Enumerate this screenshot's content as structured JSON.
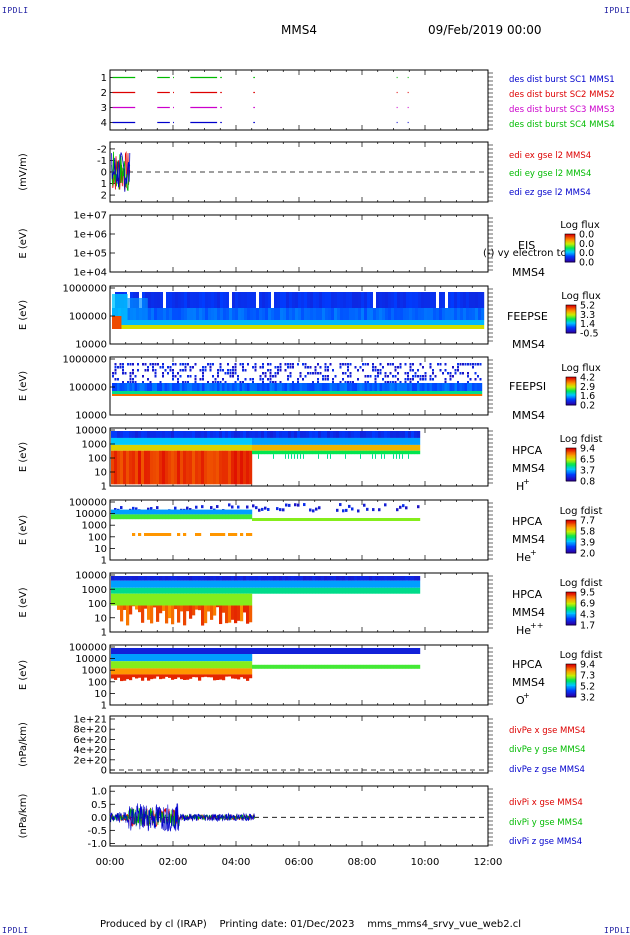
{
  "corners": {
    "tl": "IPDLI",
    "tr": "IPDLI",
    "bl": "IPDLI",
    "br": "IPDLI"
  },
  "header": {
    "title": "MMS4",
    "date": "09/Feb/2019 00:00"
  },
  "footer": {
    "produced_by": "Produced by cl (IRAP)",
    "printing_date": "Printing date: 01/Dec/2023",
    "filename": "mms_mms4_srvy_vue_web2.cl"
  },
  "colors": {
    "red": "#dd0000",
    "green": "#00bb00",
    "blue": "#0000cc",
    "magenta": "#cc00cc"
  },
  "chart_data": [
    {
      "type": "line",
      "panel": "burst",
      "ylim": [
        0.5,
        4.5
      ],
      "yticks": [
        "1",
        "2",
        "3",
        "4"
      ],
      "series": [
        {
          "name": "des dist burst SC1 MMS1",
          "color": "#0000cc",
          "level": 1
        },
        {
          "name": "des dist burst SC2 MMS2",
          "color": "#dd0000",
          "level": 3
        },
        {
          "name": "des dist burst SC3 MMS3",
          "color": "#cc00cc",
          "level": 2
        },
        {
          "name": "des dist burst SC4 MMS4",
          "color": "#00bb00",
          "level": 4
        }
      ],
      "segments_hours": [
        [
          0.08,
          0.8
        ],
        [
          1.5,
          1.9
        ],
        [
          2.0,
          2.03
        ],
        [
          2.55,
          3.4
        ],
        [
          3.5,
          3.55
        ],
        [
          4.55,
          4.6
        ],
        [
          9.1,
          9.13
        ],
        [
          9.45,
          9.48
        ]
      ]
    },
    {
      "type": "line",
      "panel": "edi",
      "ylabel": "(mV/m)",
      "ylim": [
        -2.6,
        2.6
      ],
      "yticks": [
        "-2",
        "-1",
        "0",
        "1",
        "2"
      ],
      "series": [
        {
          "name": "edi ex gse l2 MMS4",
          "color": "#dd0000"
        },
        {
          "name": "edi ey gse l2 MMS4",
          "color": "#00bb00"
        },
        {
          "name": "edi ez gse l2 MMS4",
          "color": "#0000cc"
        }
      ],
      "x_active_hours": [
        0.05,
        0.65
      ]
    },
    {
      "type": "heatmap",
      "panel": "eis",
      "ylabel": "E (eV)",
      "yticks": [
        "1e+04",
        "1e+05",
        "1e+06",
        "1e+07"
      ],
      "instrument": "EIS",
      "sub_label": "MMS4",
      "overlay_text": "(-) vy electron tc",
      "cbar_title": "Log flux",
      "cbar_ticks": [
        "0.0",
        "0.0",
        "0.0",
        "0.0"
      ],
      "has_data": false
    },
    {
      "type": "heatmap",
      "panel": "feepse",
      "ylabel": "E (eV)",
      "yticks": [
        "10000",
        "100000",
        "1000000"
      ],
      "instrument": "FEEPSE",
      "sub_label": "MMS4",
      "cbar_title": "Log flux",
      "cbar_ticks": [
        "5.2",
        "3.3",
        "1.4",
        "-0.5"
      ],
      "x_range_hours": [
        0,
        11.8
      ]
    },
    {
      "type": "heatmap",
      "panel": "feepsi",
      "ylabel": "E (eV)",
      "yticks": [
        "10000",
        "100000",
        "1000000"
      ],
      "instrument": "FEEPSI",
      "sub_label": "MMS4",
      "cbar_title": "Log flux",
      "cbar_ticks": [
        "4.2",
        "2.9",
        "1.6",
        "0.2"
      ],
      "x_range_hours": [
        0,
        11.8
      ]
    },
    {
      "type": "heatmap",
      "panel": "hpca_h",
      "ylabel": "E (eV)",
      "yticks": [
        "1",
        "10",
        "100",
        "1000",
        "10000"
      ],
      "instrument": "HPCA",
      "sub_label": "MMS4",
      "species": "H",
      "charge": "+",
      "cbar_title": "Log fdist",
      "cbar_ticks": [
        "9.4",
        "6.5",
        "3.7",
        "0.8"
      ],
      "x_range_hours": [
        0,
        9.75
      ]
    },
    {
      "type": "heatmap",
      "panel": "hpca_he",
      "ylabel": "E (eV)",
      "yticks": [
        "1",
        "10",
        "100",
        "1000",
        "10000",
        "100000"
      ],
      "instrument": "HPCA",
      "sub_label": "MMS4",
      "species": "He",
      "charge": "+",
      "cbar_title": "Log fdist",
      "cbar_ticks": [
        "7.7",
        "5.8",
        "3.9",
        "2.0"
      ],
      "x_range_hours": [
        0,
        9.75
      ]
    },
    {
      "type": "heatmap",
      "panel": "hpca_hepp",
      "ylabel": "E (eV)",
      "yticks": [
        "1",
        "10",
        "100",
        "1000",
        "10000"
      ],
      "instrument": "HPCA",
      "sub_label": "MMS4",
      "species": "He",
      "charge": "++",
      "cbar_title": "Log fdist",
      "cbar_ticks": [
        "9.5",
        "6.9",
        "4.3",
        "1.7"
      ],
      "x_range_hours": [
        0,
        9.75
      ]
    },
    {
      "type": "heatmap",
      "panel": "hpca_o",
      "ylabel": "E (eV)",
      "yticks": [
        "1",
        "10",
        "100",
        "1000",
        "10000",
        "100000"
      ],
      "instrument": "HPCA",
      "sub_label": "MMS4",
      "species": "O",
      "charge": "+",
      "cbar_title": "Log fdist",
      "cbar_ticks": [
        "9.4",
        "7.3",
        "5.2",
        "3.2"
      ],
      "x_range_hours": [
        0,
        9.75
      ]
    },
    {
      "type": "line",
      "panel": "divpe",
      "ylabel": "(nPa/km)",
      "ylim": [
        0,
        1.05e+21
      ],
      "yticks": [
        "0",
        "2e+20",
        "4e+20",
        "6e+20",
        "8e+20",
        "1e+21"
      ],
      "series": [
        {
          "name": "divPe x gse MMS4",
          "color": "#dd0000"
        },
        {
          "name": "divPe y gse MMS4",
          "color": "#00bb00"
        },
        {
          "name": "divPe z gse MMS4",
          "color": "#0000cc"
        }
      ]
    },
    {
      "type": "line",
      "panel": "divpi",
      "ylabel": "(nPa/km)",
      "ylim": [
        -1.1,
        1.2
      ],
      "yticks": [
        "-1.0",
        "-0.5",
        "0.0",
        "0.5",
        "1.0"
      ],
      "series": [
        {
          "name": "divPi x gse MMS4",
          "color": "#dd0000"
        },
        {
          "name": "divPi y gse MMS4",
          "color": "#00bb00"
        },
        {
          "name": "divPi z gse MMS4",
          "color": "#0000cc"
        }
      ],
      "x_active_hours": [
        0,
        4.6
      ],
      "xticks": [
        "00:00",
        "02:00",
        "04:00",
        "06:00",
        "08:00",
        "10:00",
        "12:00"
      ],
      "xlim_hours": [
        0,
        12
      ]
    }
  ]
}
